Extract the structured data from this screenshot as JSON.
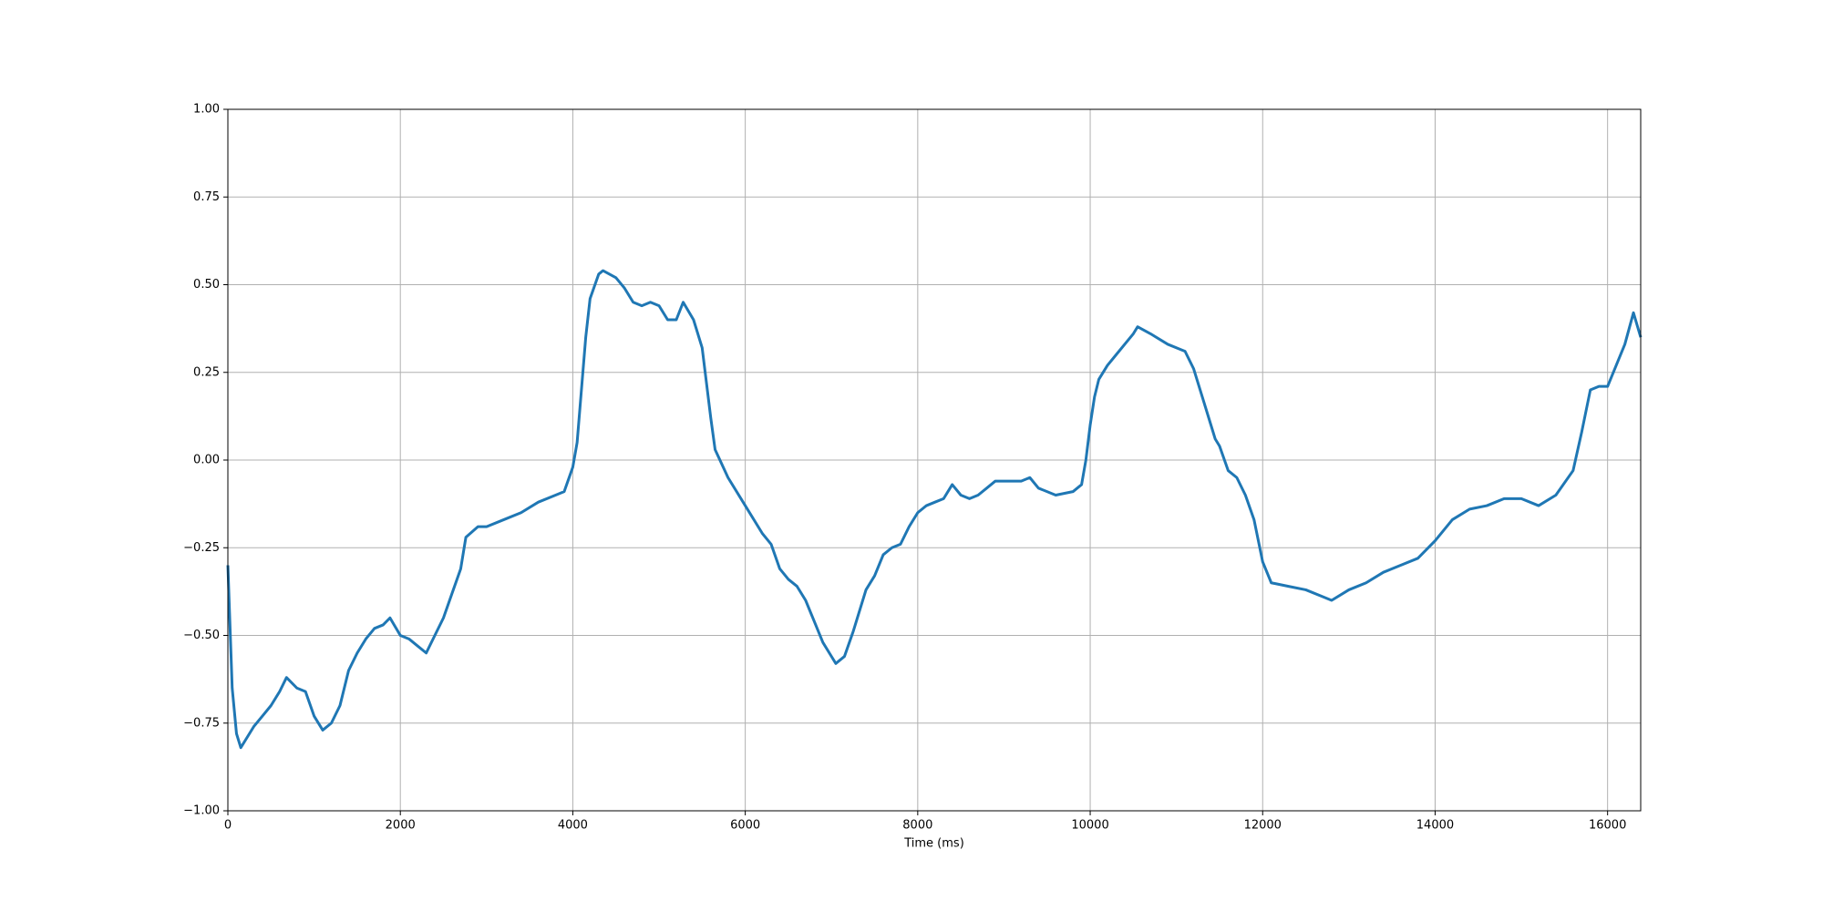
{
  "chart_data": {
    "type": "line",
    "xlabel": "Time (ms)",
    "x": [
      0,
      50,
      100,
      150,
      200,
      300,
      400,
      500,
      600,
      680,
      800,
      900,
      1000,
      1100,
      1200,
      1300,
      1400,
      1500,
      1600,
      1700,
      1800,
      1880,
      2000,
      2100,
      2200,
      2300,
      2400,
      2500,
      2600,
      2700,
      2760,
      2900,
      3000,
      3200,
      3400,
      3600,
      3800,
      3900,
      4000,
      4050,
      4100,
      4150,
      4200,
      4300,
      4350,
      4500,
      4600,
      4700,
      4800,
      4900,
      5000,
      5100,
      5200,
      5280,
      5400,
      5500,
      5600,
      5650,
      5800,
      6000,
      6200,
      6300,
      6400,
      6500,
      6600,
      6700,
      6800,
      6900,
      7000,
      7050,
      7150,
      7250,
      7400,
      7500,
      7600,
      7700,
      7800,
      7900,
      8000,
      8100,
      8200,
      8300,
      8400,
      8500,
      8600,
      8700,
      8800,
      8900,
      9000,
      9200,
      9300,
      9400,
      9600,
      9800,
      9900,
      9950,
      10000,
      10050,
      10100,
      10200,
      10300,
      10400,
      10500,
      10550,
      10700,
      10900,
      11100,
      11200,
      11300,
      11400,
      11450,
      11500,
      11600,
      11700,
      11800,
      11900,
      12000,
      12100,
      12300,
      12500,
      12700,
      12800,
      13000,
      13200,
      13400,
      13600,
      13800,
      14000,
      14200,
      14400,
      14600,
      14800,
      15000,
      15200,
      15400,
      15600,
      15700,
      15800,
      15900,
      16000,
      16100,
      16200,
      16300,
      16384
    ],
    "series": [
      {
        "color": "#1f77b4",
        "values": [
          -0.3,
          -0.65,
          -0.78,
          -0.82,
          -0.8,
          -0.76,
          -0.73,
          -0.7,
          -0.66,
          -0.62,
          -0.65,
          -0.66,
          -0.73,
          -0.77,
          -0.75,
          -0.7,
          -0.6,
          -0.55,
          -0.51,
          -0.48,
          -0.47,
          -0.45,
          -0.5,
          -0.51,
          -0.53,
          -0.55,
          -0.5,
          -0.45,
          -0.38,
          -0.31,
          -0.22,
          -0.19,
          -0.19,
          -0.17,
          -0.15,
          -0.12,
          -0.1,
          -0.09,
          -0.02,
          0.05,
          0.2,
          0.35,
          0.46,
          0.53,
          0.54,
          0.52,
          0.49,
          0.45,
          0.44,
          0.45,
          0.44,
          0.4,
          0.4,
          0.45,
          0.4,
          0.32,
          0.12,
          0.03,
          -0.05,
          -0.13,
          -0.21,
          -0.24,
          -0.31,
          -0.34,
          -0.36,
          -0.4,
          -0.46,
          -0.52,
          -0.56,
          -0.58,
          -0.56,
          -0.49,
          -0.37,
          -0.33,
          -0.27,
          -0.25,
          -0.24,
          -0.19,
          -0.15,
          -0.13,
          -0.12,
          -0.11,
          -0.07,
          -0.1,
          -0.11,
          -0.1,
          -0.08,
          -0.06,
          -0.06,
          -0.06,
          -0.05,
          -0.08,
          -0.1,
          -0.09,
          -0.07,
          0.0,
          0.1,
          0.18,
          0.23,
          0.27,
          0.3,
          0.33,
          0.36,
          0.38,
          0.36,
          0.33,
          0.31,
          0.26,
          0.18,
          0.1,
          0.06,
          0.04,
          -0.03,
          -0.05,
          -0.1,
          -0.17,
          -0.29,
          -0.35,
          -0.36,
          -0.37,
          -0.39,
          -0.4,
          -0.37,
          -0.35,
          -0.32,
          -0.3,
          -0.28,
          -0.23,
          -0.17,
          -0.14,
          -0.13,
          -0.11,
          -0.11,
          -0.13,
          -0.1,
          -0.03,
          0.08,
          0.2,
          0.21,
          0.21,
          0.27,
          0.33,
          0.42,
          0.35
        ]
      }
    ],
    "xlim": [
      0,
      16384
    ],
    "xticks": [
      0,
      2000,
      4000,
      6000,
      8000,
      10000,
      12000,
      14000,
      16000
    ],
    "ylim": [
      -1,
      1
    ],
    "yticks": [
      {
        "value": -1,
        "label": "−1.00"
      },
      {
        "value": -0.75,
        "label": "−0.75"
      },
      {
        "value": -0.5,
        "label": "−0.50"
      },
      {
        "value": -0.25,
        "label": "−0.25"
      },
      {
        "value": 0,
        "label": "0.00"
      },
      {
        "value": 0.25,
        "label": "0.25"
      },
      {
        "value": 0.5,
        "label": "0.50"
      },
      {
        "value": 0.75,
        "label": "0.75"
      },
      {
        "value": 1,
        "label": "1.00"
      }
    ],
    "grid": true
  }
}
